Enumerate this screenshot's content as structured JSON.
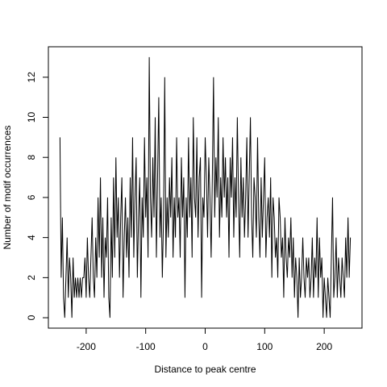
{
  "chart_data": {
    "type": "line",
    "xlabel": "Distance to peak centre",
    "ylabel": "Number of motif occurrences",
    "x": [
      -244,
      -242,
      -240,
      -238,
      -236,
      -234,
      -232,
      -230,
      -228,
      -226,
      -224,
      -222,
      -220,
      -218,
      -216,
      -214,
      -212,
      -210,
      -208,
      -206,
      -204,
      -202,
      -200,
      -198,
      -196,
      -194,
      -192,
      -190,
      -188,
      -186,
      -184,
      -182,
      -180,
      -178,
      -176,
      -174,
      -172,
      -170,
      -168,
      -166,
      -164,
      -162,
      -160,
      -158,
      -156,
      -154,
      -152,
      -150,
      -148,
      -146,
      -144,
      -142,
      -140,
      -138,
      -136,
      -134,
      -132,
      -130,
      -128,
      -126,
      -124,
      -122,
      -120,
      -118,
      -116,
      -114,
      -112,
      -110,
      -108,
      -106,
      -104,
      -102,
      -100,
      -98,
      -96,
      -94,
      -92,
      -90,
      -88,
      -86,
      -84,
      -82,
      -80,
      -78,
      -76,
      -74,
      -72,
      -70,
      -68,
      -66,
      -64,
      -62,
      -60,
      -58,
      -56,
      -54,
      -52,
      -50,
      -48,
      -46,
      -44,
      -42,
      -40,
      -38,
      -36,
      -34,
      -32,
      -30,
      -28,
      -26,
      -24,
      -22,
      -20,
      -18,
      -16,
      -14,
      -12,
      -10,
      -8,
      -6,
      -4,
      -2,
      0,
      2,
      4,
      6,
      8,
      10,
      12,
      14,
      16,
      18,
      20,
      22,
      24,
      26,
      28,
      30,
      32,
      34,
      36,
      38,
      40,
      42,
      44,
      46,
      48,
      50,
      52,
      54,
      56,
      58,
      60,
      62,
      64,
      66,
      68,
      70,
      72,
      74,
      76,
      78,
      80,
      82,
      84,
      86,
      88,
      90,
      92,
      94,
      96,
      98,
      100,
      102,
      104,
      106,
      108,
      110,
      112,
      114,
      116,
      118,
      120,
      122,
      124,
      126,
      128,
      130,
      132,
      134,
      136,
      138,
      140,
      142,
      144,
      146,
      148,
      150,
      152,
      154,
      156,
      158,
      160,
      162,
      164,
      166,
      168,
      170,
      172,
      174,
      176,
      178,
      180,
      182,
      184,
      186,
      188,
      190,
      192,
      194,
      196,
      198,
      200,
      202,
      204,
      206,
      208,
      210,
      212,
      214,
      216,
      218,
      220,
      222,
      224,
      226,
      228,
      230,
      232,
      234,
      236,
      238,
      240,
      242,
      244
    ],
    "series": [
      {
        "color": "#000000",
        "values": [
          9,
          2,
          5,
          1,
          0,
          2,
          4,
          1,
          3,
          2,
          0,
          3,
          1,
          2,
          1,
          2,
          1,
          2,
          1,
          2,
          2,
          3,
          1,
          4,
          2,
          1,
          3,
          5,
          2,
          1,
          4,
          2,
          6,
          3,
          7,
          2,
          5,
          1,
          4,
          3,
          6,
          1,
          0,
          5,
          2,
          7,
          3,
          8,
          4,
          6,
          2,
          5,
          7,
          1,
          4,
          6,
          3,
          5,
          2,
          7,
          4,
          9,
          3,
          6,
          8,
          2,
          5,
          7,
          1,
          6,
          4,
          9,
          5,
          7,
          3,
          13,
          6,
          4,
          8,
          5,
          10,
          3,
          7,
          11,
          4,
          6,
          2,
          5,
          12,
          3,
          6,
          4,
          7,
          5,
          8,
          3,
          6,
          4,
          9,
          5,
          6,
          3,
          8,
          5,
          7,
          1,
          6,
          4,
          9,
          5,
          7,
          3,
          10,
          6,
          5,
          9,
          4,
          7,
          8,
          1,
          6,
          5,
          9,
          7,
          4,
          8,
          6,
          3,
          7,
          12,
          5,
          8,
          6,
          10,
          4,
          7,
          5,
          9,
          6,
          8,
          5,
          7,
          3,
          8,
          6,
          9,
          4,
          7,
          5,
          10,
          6,
          3,
          8,
          5,
          7,
          4,
          6,
          9,
          4,
          7,
          10,
          5,
          3,
          7,
          6,
          4,
          9,
          5,
          3,
          7,
          4,
          6,
          8,
          3,
          5,
          6,
          4,
          7,
          2,
          6,
          5,
          3,
          4,
          2,
          6,
          5,
          3,
          4,
          1,
          5,
          3,
          2,
          4,
          3,
          5,
          2,
          4,
          1,
          3,
          2,
          0,
          3,
          1,
          2,
          4,
          2,
          1,
          3,
          2,
          3,
          1,
          2,
          4,
          1,
          3,
          2,
          5,
          1,
          4,
          2,
          3,
          0,
          2,
          1,
          0,
          2,
          1,
          0,
          3,
          6,
          1,
          2,
          4,
          1,
          3,
          2,
          1,
          3,
          2,
          1,
          4,
          2,
          5,
          2,
          4
        ]
      }
    ],
    "xlim": [
      -263.5,
      263.5
    ],
    "ylim": [
      -0.52,
      13.52
    ],
    "xticks": [
      -200,
      -100,
      0,
      100,
      200
    ],
    "yticks": [
      0,
      2,
      4,
      6,
      8,
      10,
      12
    ]
  }
}
